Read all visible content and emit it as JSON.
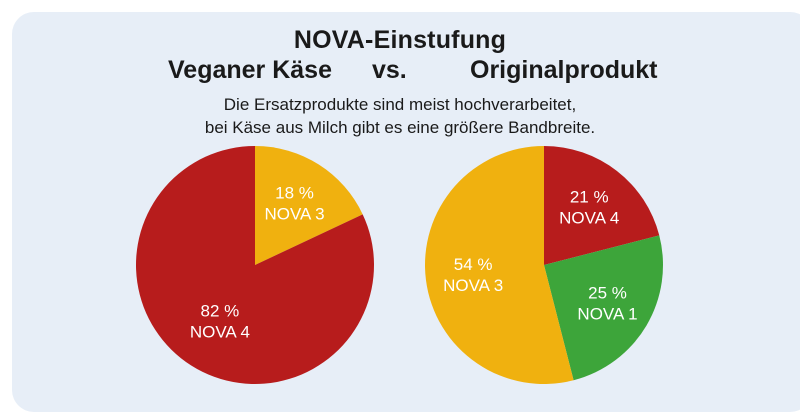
{
  "header": {
    "title": "NOVA-Einstufung",
    "left_heading": "Veganer Käse",
    "vs": "vs.",
    "right_heading": "Originalprodukt",
    "subtitle_line1": "Die Ersatzprodukte sind meist hochverarbeitet,",
    "subtitle_line2": "bei Käse aus Milch gibt es eine größere Bandbreite."
  },
  "colors": {
    "background": "#e7eef7",
    "nova4": "#b71c1c",
    "nova3": "#f0b10f",
    "nova1": "#3da53a"
  },
  "chart_data": [
    {
      "type": "pie",
      "title": "Veganer Käse",
      "slices": [
        {
          "label": "NOVA 3",
          "value": 18,
          "value_label": "18 %",
          "color": "#f0b10f"
        },
        {
          "label": "NOVA 4",
          "value": 82,
          "value_label": "82 %",
          "color": "#b71c1c"
        }
      ]
    },
    {
      "type": "pie",
      "title": "Originalprodukt",
      "slices": [
        {
          "label": "NOVA 4",
          "value": 21,
          "value_label": "21 %",
          "color": "#b71c1c"
        },
        {
          "label": "NOVA 1",
          "value": 25,
          "value_label": "25 %",
          "color": "#3da53a"
        },
        {
          "label": "NOVA 3",
          "value": 54,
          "value_label": "54 %",
          "color": "#f0b10f"
        }
      ]
    }
  ]
}
